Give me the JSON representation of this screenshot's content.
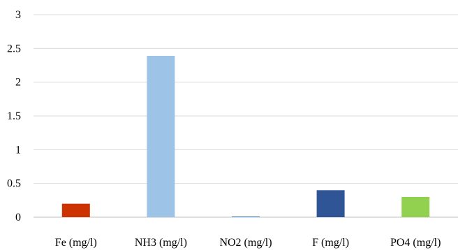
{
  "chart_data": {
    "type": "bar",
    "categories": [
      "Fe (mg/l)",
      "NH3 (mg/l)",
      "NO2 (mg/l)",
      "F (mg/l)",
      "PO4 (mg/l)"
    ],
    "values": [
      0.2,
      2.39,
      0.01,
      0.4,
      0.3
    ],
    "colors": [
      "#cc3300",
      "#9dc3e6",
      "#4a7ebb",
      "#2f5597",
      "#92d050"
    ],
    "title": "",
    "xlabel": "",
    "ylabel": "",
    "ylim": [
      0,
      3
    ],
    "yticks": [
      0,
      0.5,
      1,
      1.5,
      2,
      2.5,
      3
    ],
    "ytick_labels": [
      "0",
      "0.5",
      "1",
      "1.5",
      "2",
      "2.5",
      "3"
    ],
    "grid": true,
    "legend": "none"
  }
}
